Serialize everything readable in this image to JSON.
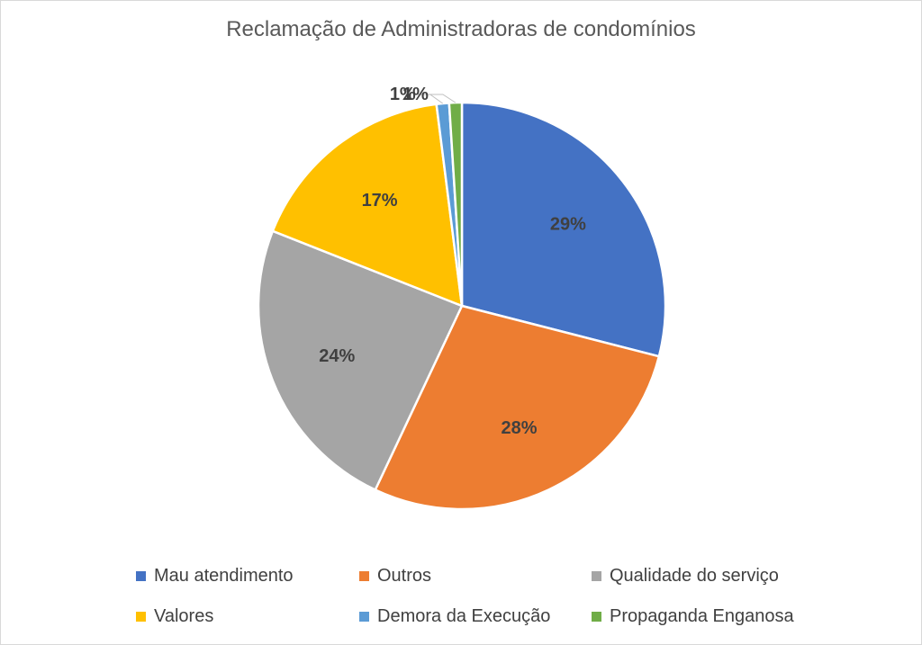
{
  "chart_data": {
    "type": "pie",
    "title": "Reclamação de Administradoras de condomínios",
    "categories": [
      "Mau atendimento",
      "Outros",
      "Qualidade do serviço",
      "Valores",
      "Demora da Execução",
      "Propaganda Enganosa"
    ],
    "values": [
      29,
      28,
      24,
      17,
      1,
      1
    ],
    "data_labels": [
      "29%",
      "28%",
      "24%",
      "17%",
      "1%",
      "1%"
    ],
    "colors": [
      "#4472c4",
      "#ed7d31",
      "#a5a5a5",
      "#ffc000",
      "#5b9bd5",
      "#70ad47"
    ],
    "legend_position": "bottom",
    "start_angle_deg": 0,
    "direction": "clockwise"
  }
}
